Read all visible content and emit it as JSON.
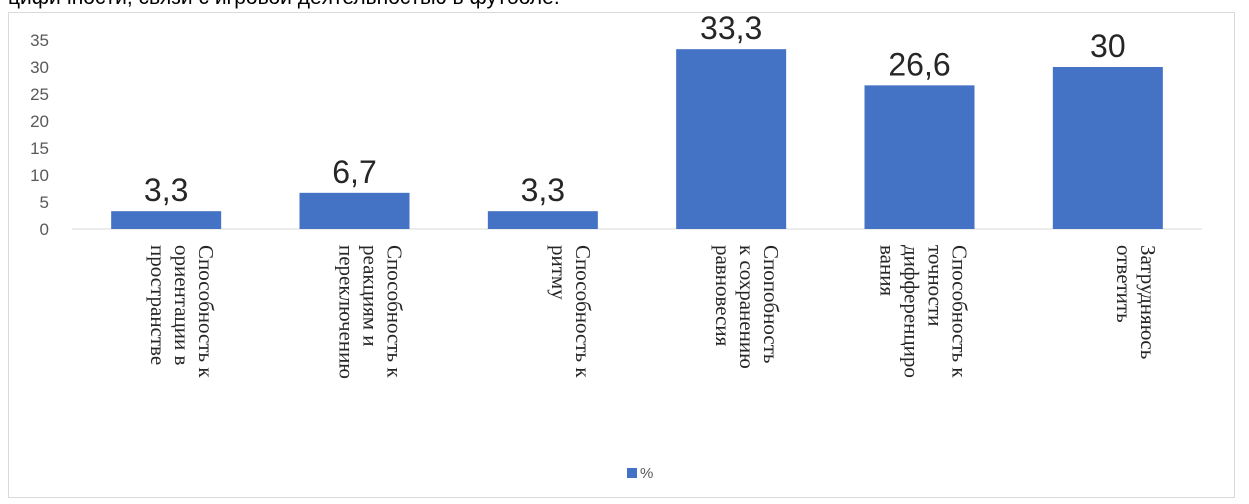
{
  "caption": "цифичности, связи с игровой деятельностью в футболе.",
  "chart_data": {
    "type": "bar",
    "categories": [
      [
        "Способность к",
        "ориентации в",
        "пространстве"
      ],
      [
        "Способность к",
        "реакциям и",
        "переключению"
      ],
      [
        "Способность к",
        "ритму"
      ],
      [
        "Спопобность",
        "к сохранению",
        "равновесия"
      ],
      [
        "Способность к",
        "точности",
        "дифференциро",
        "вания"
      ],
      [
        "Затрудняюсь",
        "ответить"
      ]
    ],
    "series": [
      {
        "name": "%",
        "values": [
          3.3,
          6.7,
          3.3,
          33.3,
          26.6,
          30
        ]
      }
    ],
    "data_labels": [
      "3,3",
      "6,7",
      "3,3",
      "33,3",
      "26,6",
      "30"
    ],
    "yticks": [
      "0",
      "5",
      "10",
      "15",
      "20",
      "25",
      "30",
      "35"
    ],
    "ylim": [
      0,
      35
    ],
    "grid": false,
    "legend_position": "bottom",
    "color": "#4472C4"
  }
}
